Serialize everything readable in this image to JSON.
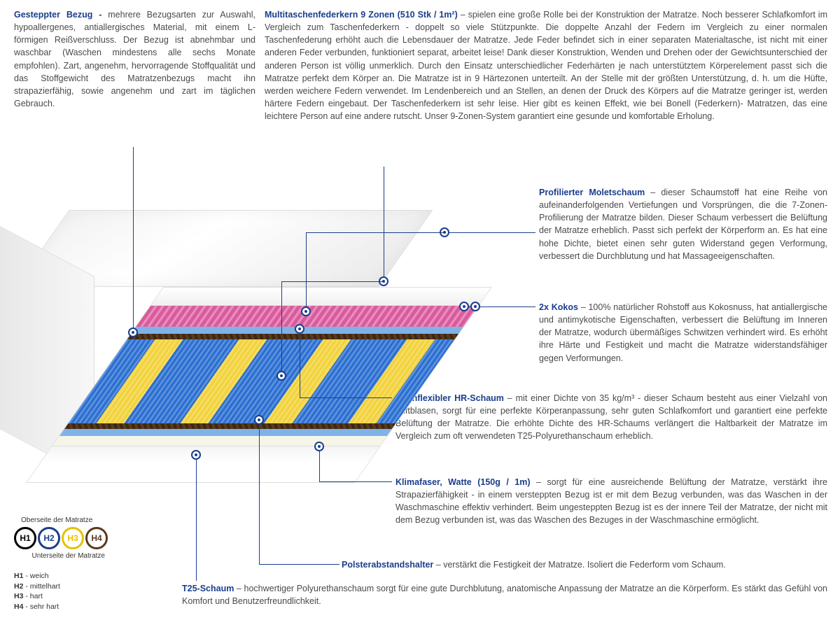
{
  "sections": {
    "bezug": {
      "title": "Gesteppter Bezug -",
      "body": " mehrere Bezugsarten zur Auswahl, hypoallergenes, antiallergisches Material, mit einem L-förmigen Reißverschluss. Der Bezug ist abnehmbar und waschbar (Waschen mindestens alle sechs Monate empfohlen). Zart, angenehm, hervorragende Stoffqualität und das Stoffgewicht des Matratzenbezugs macht ihn strapazierfähig, sowie angenehm und zart im täglichen Gebrauch."
    },
    "federkern": {
      "title": "Multitaschenfederkern 9 Zonen (510 Stk / 1m²)",
      "body": " – spielen eine große Rolle bei der Konstruktion der Matratze. Noch besserer Schlafkomfort im Vergleich zum Taschenfederkern - doppelt so viele Stützpunkte. Die doppelte Anzahl der Federn im Vergleich zu einer normalen Taschenfederung erhöht auch die Lebensdauer der Matratze. Jede Feder befindet sich in einer separaten Materialtasche, ist nicht mit einer anderen Feder verbunden, funktioniert separat, arbeitet leise! Dank dieser Konstruktion, Wenden und Drehen oder der Gewichtsunterschied der anderen Person ist völlig unmerklich. Durch den Einsatz unterschiedlicher Federhärten je nach unterstütztem Körperelement passt sich die Matratze perfekt dem Körper an. Die Matratze ist in 9 Härtezonen unterteilt. An der Stelle mit der größten Unterstützung, d. h. um die Hüfte, werden weichere Federn verwendet. Im Lendenbereich und an Stellen, an denen der Druck des Körpers auf die Matratze geringer ist, werden härtere Federn eingebaut. Der Taschenfederkern ist sehr leise. Hier gibt es keinen Effekt, wie bei Bonell (Federkern)- Matratzen, das eine leichtere Person auf eine andere rutscht. Unser 9-Zonen-System garantiert eine gesunde und komfortable Erholung."
    },
    "molet": {
      "title": "Profilierter Moletschaum",
      "body": " – dieser Schaumstoff hat eine Reihe von aufeinanderfolgenden Vertiefungen und Vorsprüngen, die die 7-Zonen-Profilierung der Matratze bilden. Dieser Schaum verbessert die Belüftung der Matratze erheblich. Passt sich perfekt der Körperform an. Es hat eine hohe Dichte, bietet einen sehr guten Widerstand gegen Verformung, verbessert die Durchblutung und hat Massageeigenschaften."
    },
    "kokos": {
      "title": "2x Kokos",
      "body": " – 100% natürlicher Rohstoff aus Kokosnuss, hat antiallergische und antimykotische Eigenschaften, verbessert die Belüftung im Inneren der Matratze, wodurch übermäßiges Schwitzen verhindert wird. Es erhöht ihre Härte und Festigkeit und macht die Matratze widerstandsfähiger gegen Verformungen."
    },
    "hr": {
      "title": "Hochflexibler HR-Schaum",
      "body": " – mit einer Dichte von 35 kg/m³ - dieser Schaum besteht aus einer Vielzahl von Luftblasen, sorgt für eine perfekte Körperanpassung, sehr guten Schlafkomfort und garantiert eine perfekte Belüftung der Matratze. Die erhöhte Dichte des HR-Schaums verlängert die Haltbarkeit der Matratze im Vergleich zum oft verwendeten T25-Polyurethanschaum erheblich."
    },
    "klima": {
      "title": "Klimafaser, Watte (150g / 1m)",
      "body": " – sorgt für eine ausreichende Belüftung der Matratze, verstärkt ihre Strapazierfähigkeit - in einem versteppten Bezug ist er mit dem Bezug verbunden, was das Waschen in der Waschmaschine effektiv verhindert. Beim ungesteppten Bezug ist es der innere Teil der Matratze, der nicht mit dem Bezug verbunden ist, was das Waschen des Bezuges in der Waschmaschine ermöglicht."
    },
    "polster": {
      "title": "Polsterabstandshalter",
      "body": " – verstärkt die Festigkeit der Matratze. Isoliert die Federform vom Schaum."
    },
    "t25": {
      "title": "T25-Schaum",
      "body": " – hochwertiger Polyurethanschaum sorgt für eine gute Durchblutung, anatomische Anpassung der Matratze an die Körperform. Es stärkt das Gefühl von Komfort und Benutzerfreundlichkeit."
    }
  },
  "legend": {
    "top": "Oberseite der Matratze",
    "bottom": "Unterseite der Matratze",
    "items": [
      {
        "code": "H1",
        "color": "#000000"
      },
      {
        "code": "H2",
        "color": "#1a3e8c"
      },
      {
        "code": "H3",
        "color": "#e5c100"
      },
      {
        "code": "H4",
        "color": "#5a3a1e"
      }
    ],
    "defs": [
      {
        "code": "H1",
        "label": " - weich"
      },
      {
        "code": "H2",
        "label": " - mittelhart"
      },
      {
        "code": "H3",
        "label": " - hart"
      },
      {
        "code": "H4",
        "label": " - sehr hart"
      }
    ]
  },
  "colors": {
    "accent": "#1a3e8c",
    "pink": "#d85c9a",
    "spring_blue": "#2b6fd1",
    "spring_yellow": "#f2d23a",
    "foam_blue": "#7fb3e8",
    "coco": "#5a3a1e"
  }
}
